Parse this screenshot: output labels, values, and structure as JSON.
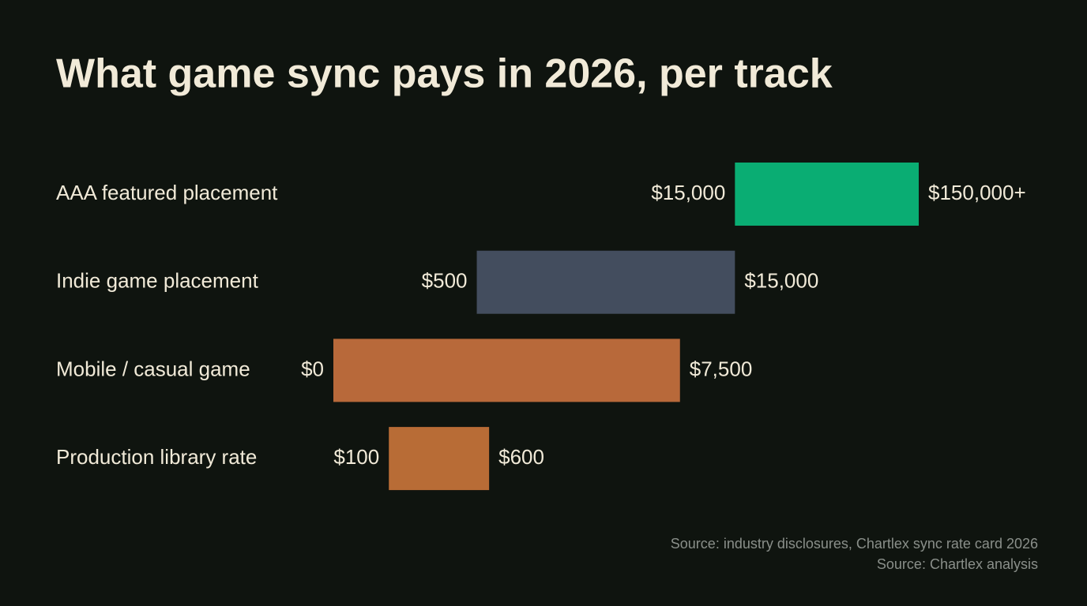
{
  "chart_data": {
    "type": "range",
    "title": "What game sync pays in 2026, per track",
    "categories": [
      "AAA featured placement",
      "Indie game placement",
      "Mobile / casual game",
      "Production library rate"
    ],
    "values": [
      [
        15000,
        150000
      ],
      [
        500,
        15000
      ],
      [
        0,
        7500
      ],
      [
        100,
        600
      ]
    ],
    "value_labels": [
      [
        "$15,000",
        "$150,000+"
      ],
      [
        "$500",
        "$15,000"
      ],
      [
        "$0",
        "$7,500"
      ],
      [
        "$100",
        "$600"
      ]
    ],
    "colors": [
      "#0aad73",
      "#434d5e",
      "#b8693a",
      "#b86c36"
    ],
    "xlim": [
      0,
      150000
    ],
    "xscale": "symlog",
    "sources": [
      "Source: industry disclosures, Chartlex sync rate card 2026",
      "Source: Chartlex analysis"
    ]
  }
}
